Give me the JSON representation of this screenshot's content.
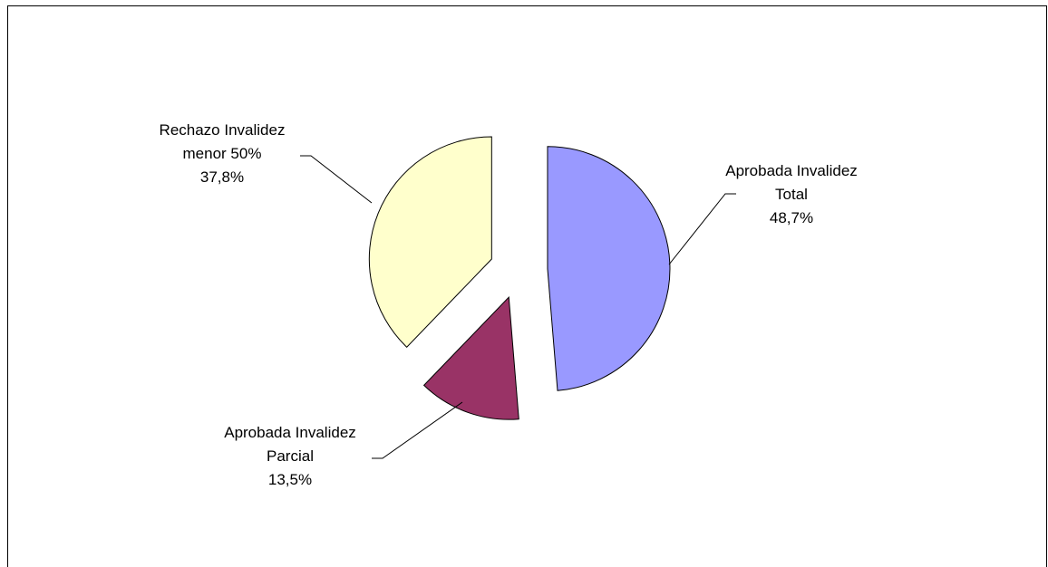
{
  "chart_data": {
    "type": "pie",
    "title": "",
    "exploded": true,
    "slices": [
      {
        "label_lines": [
          "Aprobada Invalidez",
          "Total"
        ],
        "value": 48.7,
        "value_text": "48,7%",
        "color": "#9999ff"
      },
      {
        "label_lines": [
          "Aprobada Invalidez",
          "Parcial"
        ],
        "value": 13.5,
        "value_text": "13,5%",
        "color": "#993366"
      },
      {
        "label_lines": [
          "Rechazo Invalidez",
          "menor 50%"
        ],
        "value": 37.8,
        "value_text": "37,8%",
        "color": "#ffffcc"
      }
    ],
    "legend": "none"
  }
}
